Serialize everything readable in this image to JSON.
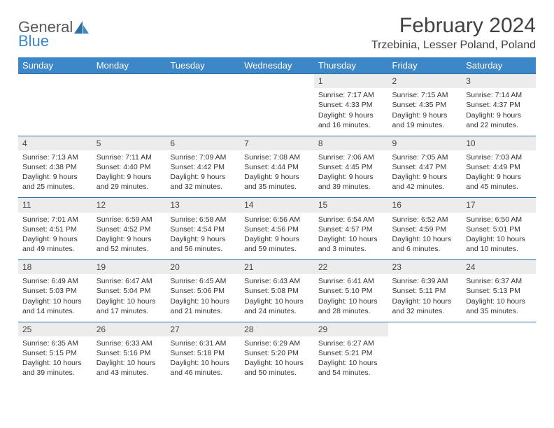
{
  "brand": {
    "word1": "General",
    "word2": "Blue"
  },
  "title": "February 2024",
  "subtitle": "Trzebinia, Lesser Poland, Poland",
  "colors": {
    "header_bg": "#3b87c8",
    "header_text": "#ffffff",
    "daynum_bg": "#ececec",
    "row_border": "#2f6ea3",
    "body_text": "#333333",
    "title_text": "#404040"
  },
  "weekdays": [
    "Sunday",
    "Monday",
    "Tuesday",
    "Wednesday",
    "Thursday",
    "Friday",
    "Saturday"
  ],
  "weeks": [
    [
      null,
      null,
      null,
      null,
      {
        "n": "1",
        "sr": "7:17 AM",
        "ss": "4:33 PM",
        "dl": "9 hours and 16 minutes."
      },
      {
        "n": "2",
        "sr": "7:15 AM",
        "ss": "4:35 PM",
        "dl": "9 hours and 19 minutes."
      },
      {
        "n": "3",
        "sr": "7:14 AM",
        "ss": "4:37 PM",
        "dl": "9 hours and 22 minutes."
      }
    ],
    [
      {
        "n": "4",
        "sr": "7:13 AM",
        "ss": "4:38 PM",
        "dl": "9 hours and 25 minutes."
      },
      {
        "n": "5",
        "sr": "7:11 AM",
        "ss": "4:40 PM",
        "dl": "9 hours and 29 minutes."
      },
      {
        "n": "6",
        "sr": "7:09 AM",
        "ss": "4:42 PM",
        "dl": "9 hours and 32 minutes."
      },
      {
        "n": "7",
        "sr": "7:08 AM",
        "ss": "4:44 PM",
        "dl": "9 hours and 35 minutes."
      },
      {
        "n": "8",
        "sr": "7:06 AM",
        "ss": "4:45 PM",
        "dl": "9 hours and 39 minutes."
      },
      {
        "n": "9",
        "sr": "7:05 AM",
        "ss": "4:47 PM",
        "dl": "9 hours and 42 minutes."
      },
      {
        "n": "10",
        "sr": "7:03 AM",
        "ss": "4:49 PM",
        "dl": "9 hours and 45 minutes."
      }
    ],
    [
      {
        "n": "11",
        "sr": "7:01 AM",
        "ss": "4:51 PM",
        "dl": "9 hours and 49 minutes."
      },
      {
        "n": "12",
        "sr": "6:59 AM",
        "ss": "4:52 PM",
        "dl": "9 hours and 52 minutes."
      },
      {
        "n": "13",
        "sr": "6:58 AM",
        "ss": "4:54 PM",
        "dl": "9 hours and 56 minutes."
      },
      {
        "n": "14",
        "sr": "6:56 AM",
        "ss": "4:56 PM",
        "dl": "9 hours and 59 minutes."
      },
      {
        "n": "15",
        "sr": "6:54 AM",
        "ss": "4:57 PM",
        "dl": "10 hours and 3 minutes."
      },
      {
        "n": "16",
        "sr": "6:52 AM",
        "ss": "4:59 PM",
        "dl": "10 hours and 6 minutes."
      },
      {
        "n": "17",
        "sr": "6:50 AM",
        "ss": "5:01 PM",
        "dl": "10 hours and 10 minutes."
      }
    ],
    [
      {
        "n": "18",
        "sr": "6:49 AM",
        "ss": "5:03 PM",
        "dl": "10 hours and 14 minutes."
      },
      {
        "n": "19",
        "sr": "6:47 AM",
        "ss": "5:04 PM",
        "dl": "10 hours and 17 minutes."
      },
      {
        "n": "20",
        "sr": "6:45 AM",
        "ss": "5:06 PM",
        "dl": "10 hours and 21 minutes."
      },
      {
        "n": "21",
        "sr": "6:43 AM",
        "ss": "5:08 PM",
        "dl": "10 hours and 24 minutes."
      },
      {
        "n": "22",
        "sr": "6:41 AM",
        "ss": "5:10 PM",
        "dl": "10 hours and 28 minutes."
      },
      {
        "n": "23",
        "sr": "6:39 AM",
        "ss": "5:11 PM",
        "dl": "10 hours and 32 minutes."
      },
      {
        "n": "24",
        "sr": "6:37 AM",
        "ss": "5:13 PM",
        "dl": "10 hours and 35 minutes."
      }
    ],
    [
      {
        "n": "25",
        "sr": "6:35 AM",
        "ss": "5:15 PM",
        "dl": "10 hours and 39 minutes."
      },
      {
        "n": "26",
        "sr": "6:33 AM",
        "ss": "5:16 PM",
        "dl": "10 hours and 43 minutes."
      },
      {
        "n": "27",
        "sr": "6:31 AM",
        "ss": "5:18 PM",
        "dl": "10 hours and 46 minutes."
      },
      {
        "n": "28",
        "sr": "6:29 AM",
        "ss": "5:20 PM",
        "dl": "10 hours and 50 minutes."
      },
      {
        "n": "29",
        "sr": "6:27 AM",
        "ss": "5:21 PM",
        "dl": "10 hours and 54 minutes."
      },
      null,
      null
    ]
  ],
  "labels": {
    "sunrise": "Sunrise:",
    "sunset": "Sunset:",
    "daylight": "Daylight:"
  }
}
